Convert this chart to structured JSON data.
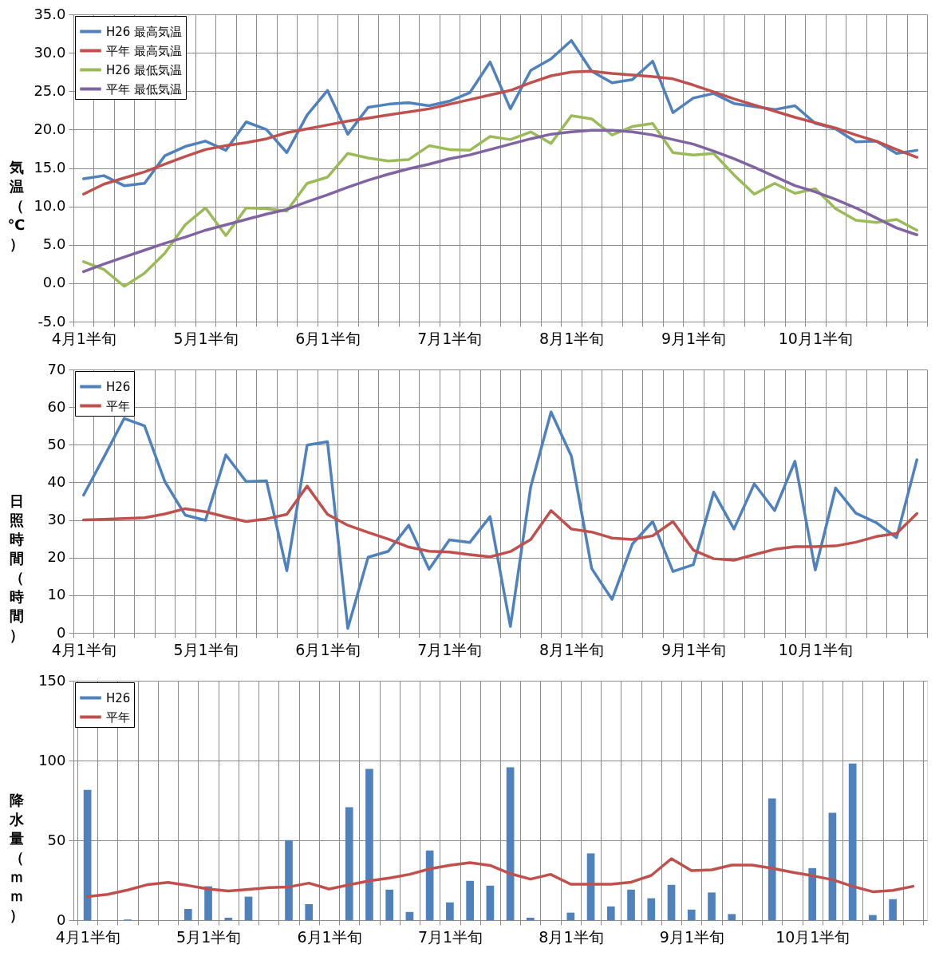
{
  "chart_data": [
    {
      "type": "line",
      "ylabel": "気温（℃）",
      "legend": "top left",
      "grid": true,
      "categories": [
        "4月1半旬",
        null,
        null,
        null,
        null,
        null,
        "5月1半旬",
        null,
        null,
        null,
        null,
        null,
        "6月1半旬",
        null,
        null,
        null,
        null,
        null,
        "7月1半旬",
        null,
        null,
        null,
        null,
        null,
        "8月1半旬",
        null,
        null,
        null,
        null,
        null,
        "9月1半旬",
        null,
        null,
        null,
        null,
        null,
        "10月1半旬",
        null,
        null,
        null,
        null,
        null
      ],
      "ylim": [
        -5,
        35
      ],
      "yticks": [
        {
          "value": -5,
          "label": "-5.0"
        },
        {
          "value": 0,
          "label": "0.0"
        },
        {
          "value": 5,
          "label": "5.0"
        },
        {
          "value": 10,
          "label": "10.0"
        },
        {
          "value": 15,
          "label": "15.0"
        },
        {
          "value": 20,
          "label": "20.0"
        },
        {
          "value": 25,
          "label": "25.0"
        },
        {
          "value": 30,
          "label": "30.0"
        },
        {
          "value": 35,
          "label": "35.0"
        }
      ],
      "series": [
        {
          "name": "H26 最高気温",
          "color": "#4f81bd",
          "values": [
            13.6,
            14.0,
            12.7,
            13.0,
            16.6,
            17.8,
            18.5,
            17.3,
            21.0,
            20.0,
            17.0,
            21.9,
            25.1,
            19.4,
            22.9,
            23.3,
            23.5,
            23.1,
            23.7,
            24.8,
            28.8,
            22.7,
            27.7,
            29.2,
            31.6,
            27.6,
            26.1,
            26.5,
            28.9,
            22.2,
            24.1,
            24.7,
            23.4,
            23.0,
            22.6,
            23.1,
            20.8,
            20.1,
            18.4,
            18.5,
            16.9,
            17.3
          ]
        },
        {
          "name": "平年 最高気温",
          "color": "#c0504d",
          "values": [
            11.6,
            12.9,
            13.7,
            14.5,
            15.5,
            16.5,
            17.4,
            17.9,
            18.3,
            18.8,
            19.6,
            20.1,
            20.6,
            21.1,
            21.5,
            21.9,
            22.3,
            22.7,
            23.3,
            23.9,
            24.5,
            25.1,
            26.1,
            27.0,
            27.5,
            27.6,
            27.3,
            27.1,
            26.9,
            26.6,
            25.8,
            24.9,
            24.0,
            23.2,
            22.4,
            21.6,
            20.9,
            20.2,
            19.3,
            18.5,
            17.4,
            16.4
          ]
        },
        {
          "name": "H26 最低気温",
          "color": "#9bbb59",
          "values": [
            2.8,
            1.8,
            -0.4,
            1.3,
            3.9,
            7.6,
            9.8,
            6.2,
            9.8,
            9.7,
            9.4,
            13.0,
            13.8,
            16.9,
            16.3,
            15.9,
            16.1,
            17.9,
            17.4,
            17.3,
            19.1,
            18.7,
            19.7,
            18.2,
            21.8,
            21.4,
            19.3,
            20.4,
            20.8,
            17.0,
            16.7,
            16.9,
            14.1,
            11.6,
            13.0,
            11.7,
            12.3,
            9.7,
            8.2,
            7.9,
            8.3,
            6.9
          ]
        },
        {
          "name": "平年 最低気温",
          "color": "#8064a2",
          "values": [
            1.5,
            2.5,
            3.4,
            4.3,
            5.2,
            6.0,
            6.9,
            7.6,
            8.3,
            9.0,
            9.6,
            10.6,
            11.5,
            12.5,
            13.4,
            14.2,
            14.9,
            15.5,
            16.2,
            16.7,
            17.4,
            18.1,
            18.8,
            19.4,
            19.7,
            19.9,
            19.9,
            19.7,
            19.3,
            18.7,
            18.1,
            17.2,
            16.2,
            15.1,
            13.9,
            12.7,
            11.9,
            10.9,
            9.8,
            8.5,
            7.2,
            6.3
          ]
        }
      ]
    },
    {
      "type": "line",
      "ylabel": "日照時間（時間）",
      "legend": "top left",
      "grid": true,
      "categories": [
        "4月1半旬",
        null,
        null,
        null,
        null,
        null,
        "5月1半旬",
        null,
        null,
        null,
        null,
        null,
        "6月1半旬",
        null,
        null,
        null,
        null,
        null,
        "7月1半旬",
        null,
        null,
        null,
        null,
        null,
        "8月1半旬",
        null,
        null,
        null,
        null,
        null,
        "9月1半旬",
        null,
        null,
        null,
        null,
        null,
        "10月1半旬",
        null,
        null,
        null,
        null,
        null
      ],
      "ylim": [
        0,
        70
      ],
      "yticks": [
        0,
        10,
        20,
        30,
        40,
        50,
        60,
        70
      ],
      "series": [
        {
          "name": "H26",
          "color": "#4f81bd",
          "values": [
            36.6,
            46.7,
            57,
            55,
            40.2,
            31.3,
            29.9,
            47.3,
            40.2,
            40.4,
            16.5,
            49.9,
            50.8,
            1.2,
            20.1,
            21.7,
            28.6,
            16.9,
            24.7,
            24.0,
            30.9,
            1.7,
            38.8,
            58.7,
            47.0,
            17.1,
            8.9,
            23.6,
            29.6,
            16.3,
            18.1,
            37.4,
            27.6,
            39.6,
            32.5,
            45.6,
            16.7,
            38.5,
            31.8,
            29.3,
            25.3,
            46.0
          ]
        },
        {
          "name": "平年",
          "color": "#c0504d",
          "values": [
            30.0,
            30.2,
            30.4,
            30.6,
            31.6,
            33.0,
            32.2,
            30.8,
            29.6,
            30.3,
            31.5,
            39.0,
            31.5,
            28.6,
            26.7,
            24.9,
            22.8,
            21.7,
            21.5,
            20.8,
            20.2,
            21.6,
            24.8,
            32.5,
            27.6,
            26.8,
            25.2,
            24.8,
            25.8,
            29.6,
            22.0,
            19.7,
            19.3,
            20.8,
            22.2,
            22.9,
            22.9,
            23.1,
            24.1,
            25.6,
            26.4,
            31.7
          ]
        }
      ]
    },
    {
      "type": "bar",
      "ylabel": "降水量（ｍｍ）",
      "legend": "top left",
      "grid": true,
      "categories": [
        "4月1半旬",
        null,
        null,
        null,
        null,
        null,
        "5月1半旬",
        null,
        null,
        null,
        null,
        null,
        "6月1半旬",
        null,
        null,
        null,
        null,
        null,
        "7月1半旬",
        null,
        null,
        null,
        null,
        null,
        "8月1半旬",
        null,
        null,
        null,
        null,
        null,
        "9月1半旬",
        null,
        null,
        null,
        null,
        null,
        "10月1半旬",
        null,
        null,
        null,
        null,
        null
      ],
      "ylim": [
        0,
        150
      ],
      "yticks": [
        0,
        50,
        100,
        150
      ],
      "series": [
        {
          "name": "H26",
          "color": "#4f81bd",
          "values": [
            81.6,
            0,
            0.4,
            0,
            0,
            7.0,
            21.2,
            1.5,
            14.7,
            0,
            50.1,
            10.0,
            0,
            70.7,
            94.8,
            19.1,
            5.1,
            43.6,
            11.1,
            24.6,
            21.6,
            95.7,
            1.5,
            0,
            4.7,
            41.8,
            8.6,
            19.1,
            13.7,
            22.1,
            6.6,
            17.3,
            3.8,
            0,
            76.2,
            0,
            32.6,
            67.2,
            98.1,
            3.2,
            13.1,
            0
          ]
        },
        {
          "name": "平年",
          "type": "line",
          "color": "#c0504d",
          "values": [
            14.7,
            16.1,
            18.9,
            22.3,
            23.6,
            21.7,
            19.5,
            18.3,
            19.3,
            20.4,
            20.8,
            23.2,
            19.5,
            22.1,
            24.6,
            26.4,
            28.7,
            32.1,
            34.4,
            36.0,
            34.3,
            29.1,
            25.7,
            28.7,
            22.5,
            22.5,
            22.5,
            23.8,
            28.0,
            38.5,
            31.0,
            31.5,
            34.5,
            34.5,
            32.5,
            30.0,
            27.8,
            25.3,
            21.2,
            17.8,
            18.6,
            21.2
          ]
        }
      ]
    }
  ]
}
